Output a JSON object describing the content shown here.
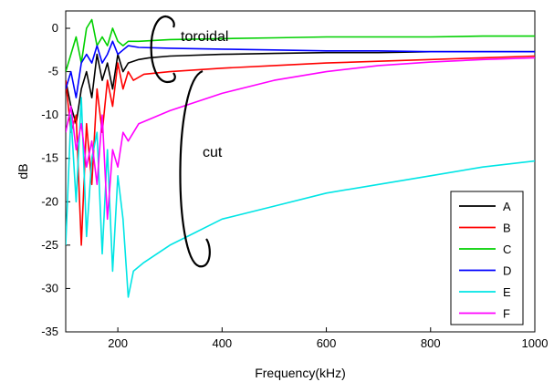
{
  "chart_data": {
    "type": "line",
    "title": "",
    "xlabel": "Frequency(kHz)",
    "ylabel": "dB",
    "xlim": [
      100,
      1000
    ],
    "ylim": [
      -35,
      2
    ],
    "xticks": [
      200,
      400,
      600,
      800,
      1000
    ],
    "yticks": [
      0,
      -5,
      -10,
      -15,
      -20,
      -25,
      -30,
      -35
    ],
    "grid": false,
    "legend_position": "bottom-right",
    "annotations": [
      {
        "text": "toroidal",
        "group": [
          "A",
          "C",
          "D"
        ]
      },
      {
        "text": "cut",
        "group": [
          "B",
          "E",
          "F"
        ]
      }
    ],
    "series": [
      {
        "name": "A",
        "color": "#000000",
        "x": [
          100,
          110,
          120,
          130,
          140,
          150,
          160,
          170,
          180,
          190,
          200,
          210,
          220,
          240,
          260,
          300,
          400,
          500,
          600,
          700,
          800,
          900,
          1000
        ],
        "y": [
          -6,
          -9,
          -11,
          -7,
          -5,
          -8,
          -3,
          -6,
          -4,
          -7,
          -3,
          -5,
          -4,
          -3.6,
          -3.4,
          -3.2,
          -3.0,
          -2.9,
          -2.8,
          -2.8,
          -2.7,
          -2.7,
          -2.7
        ]
      },
      {
        "name": "B",
        "color": "#ff0000",
        "x": [
          100,
          110,
          120,
          130,
          140,
          150,
          160,
          170,
          180,
          190,
          200,
          210,
          220,
          230,
          250,
          300,
          400,
          500,
          600,
          700,
          800,
          900,
          1000
        ],
        "y": [
          -6,
          -12,
          -10,
          -25,
          -11,
          -18,
          -7,
          -12,
          -6,
          -9,
          -4,
          -7,
          -5,
          -6,
          -5.3,
          -5.0,
          -4.6,
          -4.3,
          -4.0,
          -3.8,
          -3.6,
          -3.4,
          -3.2
        ]
      },
      {
        "name": "C",
        "color": "#00d000",
        "x": [
          100,
          110,
          120,
          130,
          140,
          150,
          160,
          170,
          180,
          190,
          200,
          210,
          220,
          240,
          300,
          400,
          500,
          600,
          700,
          800,
          900,
          1000
        ],
        "y": [
          -5,
          -3,
          -1,
          -4,
          0,
          1,
          -2,
          -1,
          -2,
          0,
          -1.5,
          -2,
          -1.5,
          -1.5,
          -1.3,
          -1.2,
          -1.1,
          -1.0,
          -1.0,
          -1.0,
          -0.9,
          -0.9
        ]
      },
      {
        "name": "D",
        "color": "#0000ff",
        "x": [
          100,
          110,
          120,
          130,
          140,
          150,
          160,
          170,
          180,
          190,
          200,
          210,
          220,
          240,
          300,
          400,
          500,
          600,
          700,
          800,
          900,
          1000
        ],
        "y": [
          -7,
          -5,
          -8,
          -4,
          -3,
          -4,
          -2,
          -4,
          -3,
          -1.5,
          -3,
          -2.5,
          -2,
          -2.2,
          -2.3,
          -2.4,
          -2.5,
          -2.6,
          -2.6,
          -2.7,
          -2.7,
          -2.7
        ]
      },
      {
        "name": "E",
        "color": "#00e5e5",
        "x": [
          100,
          110,
          120,
          130,
          140,
          150,
          160,
          170,
          180,
          190,
          200,
          210,
          220,
          230,
          250,
          300,
          350,
          400,
          500,
          600,
          700,
          800,
          900,
          1000
        ],
        "y": [
          -25,
          -10,
          -20,
          -8,
          -24,
          -15,
          -12,
          -26,
          -14,
          -28,
          -17,
          -22,
          -31,
          -28,
          -27,
          -25,
          -23.5,
          -22,
          -20.5,
          -19,
          -18,
          -17,
          -16,
          -15.3
        ]
      },
      {
        "name": "F",
        "color": "#ff00ff",
        "x": [
          100,
          110,
          120,
          130,
          140,
          150,
          160,
          170,
          180,
          190,
          200,
          210,
          220,
          240,
          300,
          400,
          500,
          600,
          700,
          800,
          900,
          1000
        ],
        "y": [
          -12,
          -9,
          -14,
          -11,
          -16,
          -13,
          -18,
          -10,
          -22,
          -14,
          -16,
          -12,
          -13,
          -11,
          -9.5,
          -7.5,
          -6,
          -5,
          -4.3,
          -3.9,
          -3.6,
          -3.4
        ]
      }
    ]
  }
}
